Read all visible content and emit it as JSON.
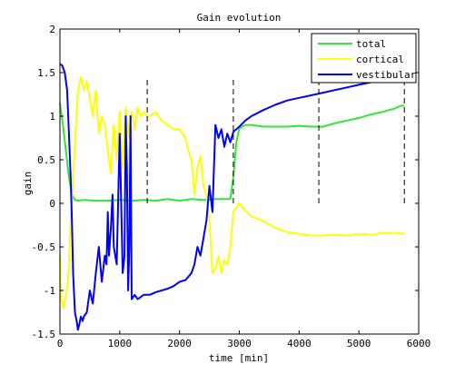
{
  "figure": {
    "background": "#ffffff",
    "axes_color": "#000000"
  },
  "chart_data": {
    "type": "line",
    "title": "Gain evolution",
    "xlabel": "time [min]",
    "ylabel": "gain",
    "xlim": [
      0,
      6000
    ],
    "ylim": [
      -1.5,
      2
    ],
    "xticks": [
      0,
      1000,
      2000,
      3000,
      4000,
      5000,
      6000
    ],
    "xtick_labels": [
      "0",
      "1000",
      "2000",
      "3000",
      "4000",
      "5000",
      "6000"
    ],
    "yticks": [
      -1.5,
      -1,
      -0.5,
      0,
      0.5,
      1,
      1.5,
      2
    ],
    "ytick_labels": [
      "-1.5",
      "-1",
      "-0.5",
      "0",
      "0.5",
      "1",
      "1.5",
      "2"
    ],
    "grid": false,
    "legend_position": "top-right",
    "series": [
      {
        "name": "total",
        "color": "#33e633",
        "x": [
          0,
          50,
          100,
          150,
          200,
          250,
          300,
          400,
          600,
          800,
          1000,
          1200,
          1400,
          1600,
          1800,
          2000,
          2200,
          2400,
          2600,
          2800,
          2850,
          2900,
          2950,
          3000,
          3100,
          3200,
          3400,
          3600,
          3800,
          4000,
          4200,
          4400,
          4600,
          4800,
          5000,
          5200,
          5400,
          5600,
          5700,
          5760
        ],
        "y": [
          1.15,
          0.9,
          0.6,
          0.3,
          0.1,
          0.04,
          0.03,
          0.04,
          0.03,
          0.03,
          0.04,
          0.03,
          0.04,
          0.03,
          0.05,
          0.03,
          0.05,
          0.04,
          0.05,
          0.05,
          0.05,
          0.3,
          0.7,
          0.86,
          0.9,
          0.9,
          0.88,
          0.88,
          0.88,
          0.89,
          0.88,
          0.88,
          0.92,
          0.95,
          0.98,
          1.02,
          1.05,
          1.09,
          1.12,
          1.12
        ]
      },
      {
        "name": "cortical",
        "color": "#ffff00",
        "x": [
          0,
          20,
          60,
          100,
          140,
          180,
          220,
          260,
          300,
          350,
          400,
          450,
          500,
          550,
          600,
          650,
          700,
          750,
          800,
          850,
          900,
          950,
          1000,
          1050,
          1100,
          1150,
          1200,
          1250,
          1300,
          1350,
          1400,
          1450,
          1500,
          1600,
          1700,
          1800,
          1900,
          2000,
          2100,
          2150,
          2200,
          2250,
          2300,
          2350,
          2400,
          2450,
          2500,
          2550,
          2600,
          2650,
          2700,
          2750,
          2800,
          2850,
          2900,
          2950,
          3000,
          3100,
          3200,
          3400,
          3600,
          3800,
          4000,
          4200,
          4400,
          4600,
          4800,
          5000,
          5200,
          5400,
          5600,
          5760
        ],
        "y": [
          -0.6,
          -1.1,
          -1.2,
          -1.05,
          -0.85,
          -0.2,
          0.3,
          0.8,
          1.3,
          1.45,
          1.3,
          1.4,
          1.2,
          1.0,
          1.3,
          0.8,
          1.0,
          0.9,
          0.6,
          0.35,
          0.9,
          0.5,
          1.05,
          0.4,
          1.1,
          0.75,
          1.05,
          0.85,
          1.1,
          1.0,
          1.05,
          1.0,
          1.0,
          1.05,
          0.95,
          0.9,
          0.85,
          0.85,
          0.75,
          0.6,
          0.5,
          0.1,
          0.4,
          0.55,
          0.2,
          0.1,
          -0.2,
          -0.8,
          -0.75,
          -0.6,
          -0.8,
          -0.65,
          -0.7,
          -0.5,
          -0.1,
          -0.05,
          0.0,
          -0.08,
          -0.15,
          -0.2,
          -0.28,
          -0.33,
          -0.35,
          -0.37,
          -0.37,
          -0.36,
          -0.37,
          -0.35,
          -0.36,
          -0.34,
          -0.34,
          -0.35
        ]
      },
      {
        "name": "vestibular",
        "color": "#0000ff",
        "x": [
          0,
          40,
          80,
          120,
          150,
          180,
          200,
          220,
          250,
          280,
          300,
          320,
          350,
          380,
          400,
          450,
          500,
          550,
          600,
          650,
          700,
          750,
          780,
          800,
          820,
          850,
          880,
          900,
          950,
          1000,
          1050,
          1080,
          1100,
          1120,
          1140,
          1160,
          1180,
          1200,
          1250,
          1300,
          1400,
          1500,
          1600,
          1700,
          1800,
          1900,
          2000,
          2100,
          2200,
          2250,
          2300,
          2350,
          2400,
          2450,
          2500,
          2550,
          2600,
          2650,
          2700,
          2750,
          2800,
          2850,
          2900,
          3000,
          3100,
          3200,
          3400,
          3600,
          3800,
          4000,
          4200,
          4400,
          4600,
          4800,
          5000,
          5200,
          5400,
          5600,
          5760
        ],
        "y": [
          1.6,
          1.58,
          1.5,
          1.3,
          0.8,
          0.3,
          -0.2,
          -0.8,
          -1.25,
          -1.35,
          -1.45,
          -1.4,
          -1.3,
          -1.35,
          -1.3,
          -1.25,
          -1.0,
          -1.15,
          -0.8,
          -0.5,
          -0.9,
          -0.6,
          -0.7,
          -0.1,
          -0.6,
          -0.3,
          0.1,
          -0.5,
          -0.7,
          0.8,
          -0.8,
          -0.6,
          1.0,
          0.4,
          -1.0,
          -0.5,
          1.0,
          -1.1,
          -1.05,
          -1.1,
          -1.05,
          -1.05,
          -1.02,
          -1.0,
          -0.98,
          -0.95,
          -0.9,
          -0.88,
          -0.8,
          -0.7,
          -0.5,
          -0.6,
          -0.4,
          -0.2,
          0.2,
          -0.1,
          0.9,
          0.75,
          0.85,
          0.65,
          0.8,
          0.7,
          0.82,
          0.88,
          0.95,
          1.0,
          1.07,
          1.13,
          1.18,
          1.21,
          1.24,
          1.27,
          1.3,
          1.33,
          1.36,
          1.39,
          1.42,
          1.45,
          1.48
        ]
      }
    ],
    "vlines": [
      {
        "x": 1460,
        "y": [
          0.0,
          1.45
        ]
      },
      {
        "x": 2900,
        "y": [
          0.0,
          1.45
        ]
      },
      {
        "x": 4330,
        "y": [
          0.0,
          1.45
        ]
      },
      {
        "x": 5760,
        "y": [
          0.0,
          1.45
        ]
      }
    ]
  }
}
